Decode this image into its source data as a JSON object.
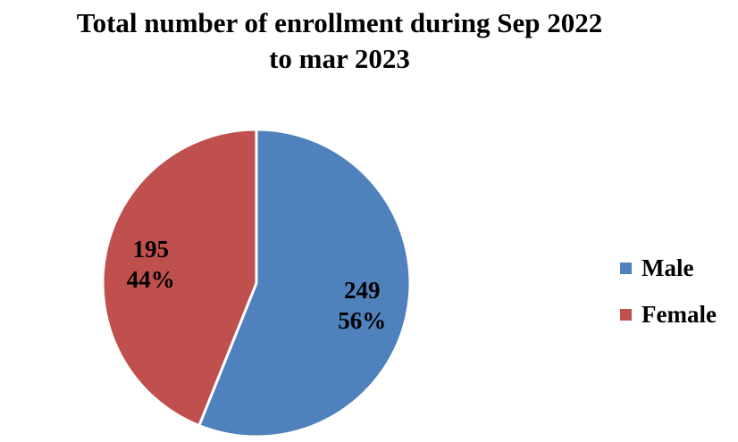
{
  "chart_data": {
    "type": "pie",
    "title_lines": [
      "Total number of enrollment during Sep 2022",
      "to mar 2023"
    ],
    "slices": [
      {
        "name": "Male",
        "value": 249,
        "percent": "56%",
        "color": "#4F81BD"
      },
      {
        "name": "Female",
        "value": 195,
        "percent": "44%",
        "color": "#C0504D"
      }
    ],
    "legend_position": "right"
  }
}
